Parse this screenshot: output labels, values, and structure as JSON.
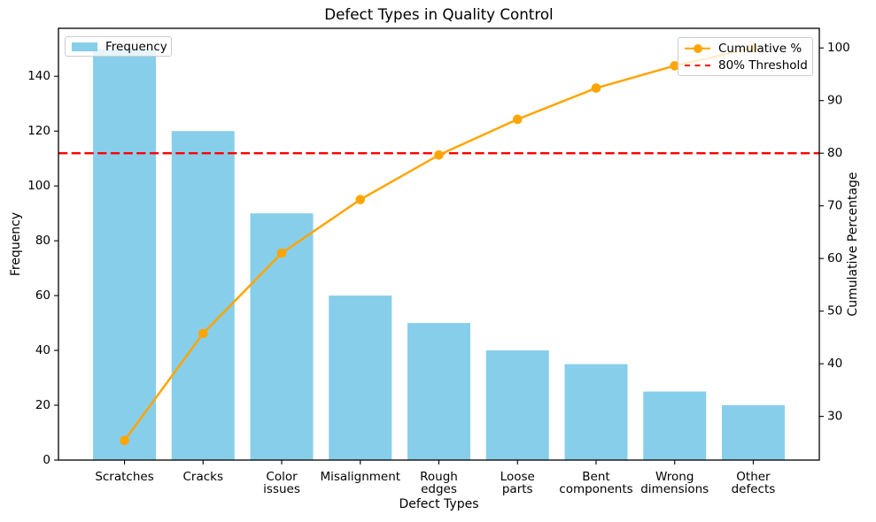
{
  "chart_data": {
    "type": "bar",
    "subtype": "pareto",
    "title": "Defect Types in Quality Control",
    "xlabel": "Defect Types",
    "categories": [
      "Scratches",
      "Cracks",
      "Color issues",
      "Misalignment",
      "Rough edges",
      "Loose parts",
      "Bent components",
      "Wrong dimensions",
      "Other defects"
    ],
    "series": [
      {
        "name": "Frequency",
        "kind": "bar",
        "axis": "left",
        "color": "#87CEEB",
        "values": [
          150,
          120,
          90,
          60,
          50,
          40,
          35,
          25,
          20
        ]
      },
      {
        "name": "Cumulative %",
        "kind": "line",
        "axis": "right",
        "color": "#FFA500",
        "marker": "circle",
        "values": [
          25.42,
          45.76,
          61.02,
          71.19,
          79.66,
          86.44,
          92.37,
          96.61,
          100.0
        ]
      }
    ],
    "threshold": {
      "label": "80% Threshold",
      "value": 80,
      "axis": "right",
      "color": "#FF0000",
      "style": "dashed"
    },
    "axes": {
      "left": {
        "label": "Frequency",
        "lim": [
          0,
          157.5
        ],
        "ticks": [
          0,
          20,
          40,
          60,
          80,
          100,
          120,
          140
        ]
      },
      "right": {
        "label": "Cumulative Percentage",
        "lim": [
          21.7,
          103.73
        ],
        "ticks": [
          30,
          40,
          50,
          60,
          70,
          80,
          90,
          100
        ]
      }
    },
    "legend": {
      "left": [
        "Frequency"
      ],
      "right": [
        "Cumulative %",
        "80% Threshold"
      ]
    },
    "grid": false,
    "colors": {
      "bar": "#87CEEB",
      "line": "#FFA500",
      "threshold": "#FF0000",
      "text": "#000000",
      "spine": "#000000",
      "legend_border": "#CCCCCC"
    }
  }
}
